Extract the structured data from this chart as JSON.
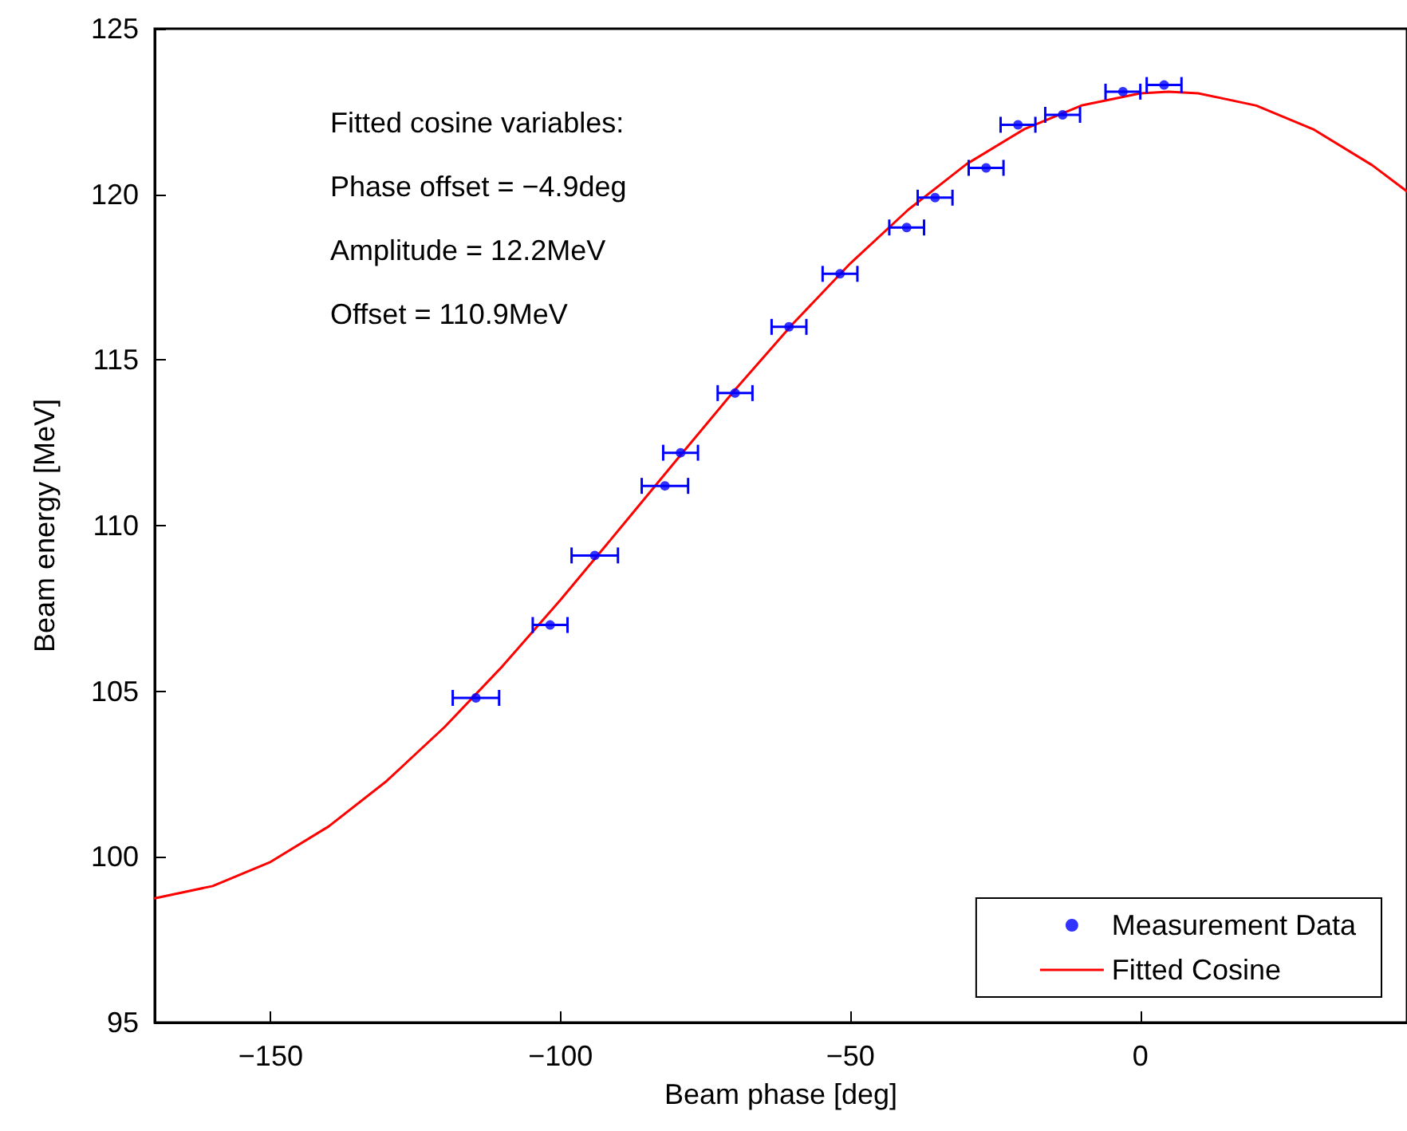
{
  "chart_data": {
    "type": "scatter",
    "xlabel": "Beam phase [deg]",
    "ylabel": "Beam energy [MeV]",
    "xlim": [
      -170,
      46
    ],
    "xticks": [
      -150,
      -100,
      -50,
      0
    ],
    "ylim": [
      95,
      125
    ],
    "yticks": [
      95,
      100,
      105,
      110,
      115,
      120,
      125
    ],
    "grid": false,
    "legend": "bottom right",
    "annotations": [
      "Fitted cosine variables:",
      "Phase offset = −4.9deg",
      "Amplitude = 12.2MeV",
      "Offset = 110.9MeV"
    ],
    "series": [
      {
        "name": "Measurement Data",
        "color": "#0000ff",
        "marker": "circle",
        "x": [
          -114.6,
          -101.8,
          -94.1,
          -82.0,
          -79.3,
          -69.9,
          -60.6,
          -51.8,
          -40.3,
          -35.4,
          -26.6,
          -21.1,
          -13.4,
          -3.0,
          4.1
        ],
        "values": [
          104.8,
          107.0,
          109.1,
          111.2,
          112.2,
          114.0,
          116.0,
          117.6,
          119.0,
          119.9,
          120.8,
          122.1,
          122.4,
          123.1,
          123.3
        ],
        "xerrors": [
          4,
          3,
          4,
          4,
          3,
          3,
          3,
          3,
          3,
          3,
          3,
          3,
          3,
          3,
          3
        ]
      },
      {
        "name": "Fitted Cosine",
        "type": "line",
        "color": "#ff0000",
        "marker": "none",
        "line_style": "solid",
        "x": [
          -170,
          -160,
          -150,
          -140,
          -130,
          -120,
          -110,
          -100,
          -90,
          -80,
          -70,
          -60,
          -50,
          -40,
          -30,
          -20,
          -10,
          0,
          4.9,
          10,
          20,
          30,
          40,
          46
        ],
        "values": [
          98.75,
          99.12,
          99.85,
          100.92,
          102.29,
          103.92,
          105.76,
          107.76,
          109.86,
          111.98,
          114.08,
          116.08,
          117.92,
          119.54,
          120.91,
          121.97,
          122.69,
          123.05,
          123.1,
          123.05,
          122.68,
          121.95,
          120.88,
          120.09
        ]
      }
    ]
  }
}
